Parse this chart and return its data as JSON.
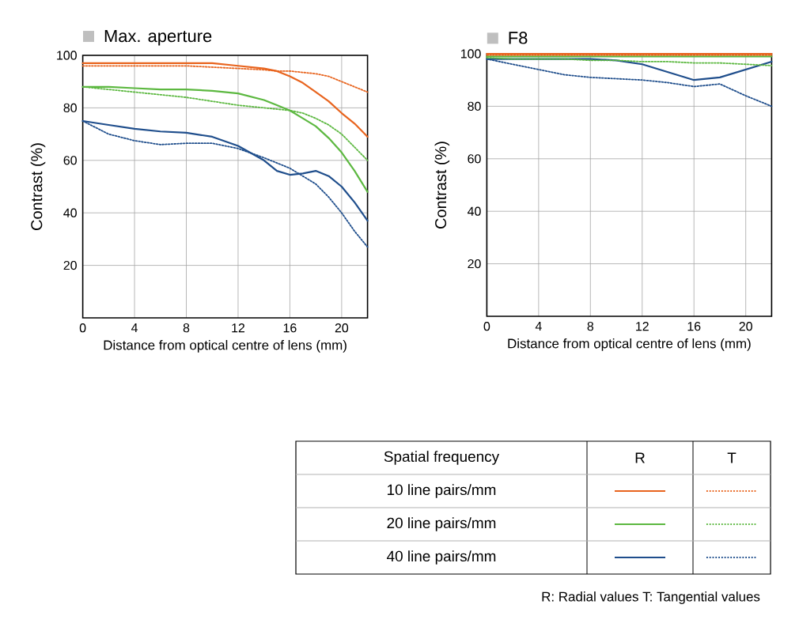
{
  "chart_data": [
    {
      "type": "line",
      "title": "Max. aperture",
      "xlabel": "Distance from optical centre of lens (mm)",
      "ylabel": "Contrast (%)",
      "xlim": [
        0,
        22
      ],
      "ylim": [
        0,
        100
      ],
      "xticks": [
        0,
        4,
        8,
        12,
        16,
        20
      ],
      "yticks": [
        20,
        40,
        60,
        80,
        100
      ],
      "grid": true,
      "legend": "bottom right",
      "legend_title": "Spatial frequency",
      "annotations": [
        "R",
        "T",
        "R: Radial values T: Tangential values"
      ],
      "x": [
        0,
        2,
        4,
        6,
        8,
        10,
        12,
        14,
        15,
        16,
        17,
        18,
        19,
        20,
        21,
        22
      ],
      "series": [
        {
          "name": "10 line pairs/mm",
          "color": "#e8641e",
          "line_style": "solid",
          "values": [
            97,
            97,
            97,
            97,
            97,
            97,
            96,
            95,
            94,
            92,
            89.5,
            86,
            82.5,
            78,
            74,
            69
          ]
        },
        {
          "color": "#e8641e",
          "line_style": "dotted",
          "values": [
            96,
            96,
            96,
            96,
            96,
            95.5,
            95,
            94.5,
            94,
            94,
            93.5,
            93,
            92,
            90,
            88,
            86
          ]
        },
        {
          "name": "20 line pairs/mm",
          "color": "#5cb840",
          "line_style": "solid",
          "values": [
            88,
            88,
            87.5,
            87,
            87,
            86.5,
            85.5,
            83,
            81,
            79,
            76,
            73,
            68.5,
            63,
            56,
            48
          ]
        },
        {
          "color": "#5cb840",
          "line_style": "dotted",
          "values": [
            88,
            87,
            86,
            85,
            84,
            82.5,
            81,
            80,
            79.5,
            79,
            78,
            76,
            73.5,
            70,
            65,
            60
          ]
        },
        {
          "name": "40 line pairs/mm",
          "color": "#1f4e8c",
          "line_style": "solid",
          "values": [
            75,
            73.5,
            72,
            71,
            70.5,
            69,
            65.5,
            60,
            56,
            54.5,
            55,
            56,
            54,
            50,
            44,
            37
          ]
        },
        {
          "color": "#1f4e8c",
          "line_style": "dotted",
          "values": [
            75,
            70,
            67.5,
            66,
            66.5,
            66.5,
            64.5,
            61,
            59,
            57,
            54,
            51,
            46,
            40,
            33,
            27
          ]
        }
      ]
    },
    {
      "type": "line",
      "title": "F8",
      "xlabel": "Distance from optical centre of lens (mm)",
      "ylabel": "Contrast (%)",
      "xlim": [
        0,
        22
      ],
      "ylim": [
        0,
        100
      ],
      "xticks": [
        0,
        4,
        8,
        12,
        16,
        20
      ],
      "yticks": [
        20,
        40,
        60,
        80,
        100
      ],
      "grid": true,
      "x": [
        0,
        2,
        4,
        6,
        8,
        10,
        12,
        14,
        16,
        18,
        20,
        22
      ],
      "series": [
        {
          "color": "#e8641e",
          "line_style": "solid",
          "values": [
            100,
            100,
            100,
            100,
            100,
            100,
            100,
            100,
            100,
            100,
            100,
            100
          ]
        },
        {
          "color": "#e8641e",
          "line_style": "dotted",
          "values": [
            99.5,
            99.5,
            99.5,
            99.5,
            99.5,
            99.5,
            99.5,
            99.5,
            99.5,
            99.5,
            99.5,
            99.5
          ]
        },
        {
          "color": "#5cb840",
          "line_style": "solid",
          "values": [
            99,
            99,
            99,
            99,
            99,
            99,
            99,
            99,
            99,
            99,
            99,
            99
          ]
        },
        {
          "color": "#5cb840",
          "line_style": "dotted",
          "values": [
            98.5,
            98,
            98,
            98,
            97.5,
            97.5,
            97,
            97,
            96.5,
            96.5,
            96,
            95.5
          ]
        },
        {
          "color": "#1f4e8c",
          "line_style": "solid",
          "values": [
            98,
            98,
            98,
            98,
            98,
            97.5,
            96,
            93,
            90,
            91,
            94,
            97
          ]
        },
        {
          "color": "#1f4e8c",
          "line_style": "dotted",
          "values": [
            98,
            96,
            94,
            92,
            91,
            90.5,
            90,
            89,
            87.5,
            88.5,
            84,
            80
          ]
        }
      ]
    }
  ]
}
